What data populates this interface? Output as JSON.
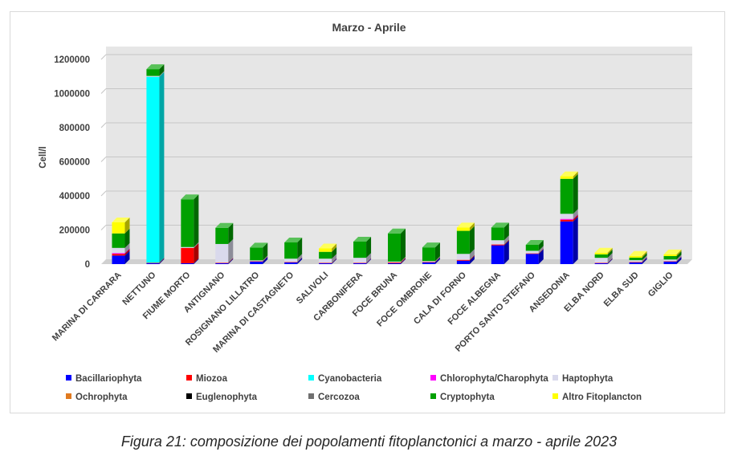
{
  "chart_data": {
    "type": "bar",
    "stacked": true,
    "title": "Marzo - Aprile",
    "xlabel": "",
    "ylabel": "Cell/l",
    "ylim": [
      0,
      1200000
    ],
    "yticks": [
      "0",
      "200000",
      "400000",
      "600000",
      "800000",
      "1000000",
      "1200000"
    ],
    "ytick_values": [
      0,
      200000,
      400000,
      600000,
      800000,
      1000000,
      1200000
    ],
    "grid": true,
    "legend_position": "bottom",
    "categories": [
      "MARINA DI CARRARA",
      "NETTUNO",
      "FIUME MORTO",
      "ANTIGNANO",
      "ROSIGNANO LILLATRO",
      "MARINA DI CASTAGNETO",
      "SALIVOLI",
      "CARBONIFERA",
      "FOCE BRUNA",
      "FOCE OMBRONE",
      "CALA DI FORNO",
      "FOCE ALBEGNA",
      "PORTO SANTO STEFANO",
      "ANSEDONIA",
      "ELBA NORD",
      "ELBA SUD",
      "GIGLIO"
    ],
    "series": [
      {
        "name": "Bacillariophyta",
        "color": "#0000ff",
        "values": [
          50000,
          5000,
          5000,
          5000,
          15000,
          10000,
          5000,
          5000,
          5000,
          10000,
          20000,
          110000,
          60000,
          250000,
          5000,
          10000,
          15000
        ]
      },
      {
        "name": "Miozoa",
        "color": "#ff0000",
        "values": [
          10000,
          3000,
          90000,
          3000,
          2000,
          2000,
          2000,
          2000,
          5000,
          3000,
          5000,
          5000,
          3000,
          10000,
          2000,
          3000,
          2000
        ]
      },
      {
        "name": "Cyanobacteria",
        "color": "#00ffff",
        "values": [
          0,
          1090000,
          0,
          0,
          0,
          0,
          0,
          0,
          0,
          0,
          0,
          0,
          0,
          0,
          0,
          0,
          0
        ]
      },
      {
        "name": "Chlorophyta/Charophyta",
        "color": "#ff00ff",
        "values": [
          5000,
          0,
          0,
          0,
          0,
          0,
          0,
          0,
          0,
          0,
          0,
          0,
          0,
          5000,
          0,
          0,
          0
        ]
      },
      {
        "name": "Haptophyta",
        "color": "#d9d9ec",
        "values": [
          30000,
          5000,
          5000,
          110000,
          5000,
          20000,
          25000,
          30000,
          5000,
          5000,
          35000,
          25000,
          15000,
          30000,
          30000,
          10000,
          10000
        ]
      },
      {
        "name": "Ochrophyta",
        "color": "#e07a20",
        "values": [
          0,
          0,
          0,
          0,
          0,
          0,
          0,
          0,
          0,
          0,
          0,
          0,
          0,
          0,
          0,
          0,
          0
        ]
      },
      {
        "name": "Euglenophyta",
        "color": "#000000",
        "values": [
          0,
          0,
          0,
          0,
          0,
          0,
          0,
          0,
          0,
          0,
          0,
          0,
          0,
          0,
          0,
          0,
          0
        ]
      },
      {
        "name": "Cercozoa",
        "color": "#707070",
        "values": [
          0,
          0,
          0,
          0,
          0,
          0,
          0,
          0,
          0,
          0,
          0,
          0,
          0,
          0,
          0,
          0,
          0
        ]
      },
      {
        "name": "Cryptophyta",
        "color": "#00a000",
        "values": [
          85000,
          40000,
          280000,
          95000,
          75000,
          95000,
          40000,
          95000,
          165000,
          80000,
          135000,
          75000,
          35000,
          205000,
          20000,
          15000,
          20000
        ]
      },
      {
        "name": "Altro Fitoplancton",
        "color": "#ffff00",
        "values": [
          65000,
          0,
          0,
          0,
          0,
          0,
          20000,
          0,
          0,
          0,
          20000,
          0,
          0,
          15000,
          10000,
          10000,
          10000
        ]
      }
    ]
  },
  "caption": "Figura 21: composizione dei popolamenti fitoplanctonici a marzo - aprile 2023"
}
